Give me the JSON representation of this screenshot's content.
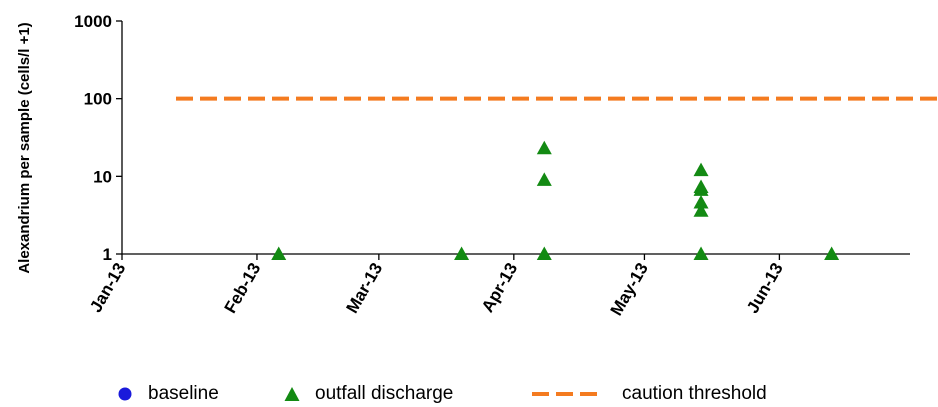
{
  "chart_data": {
    "type": "scatter",
    "ylabel": "Alexandrium per sample (cells/l +1)",
    "y_scale": "log",
    "ylim": [
      1,
      1000
    ],
    "y_ticks": [
      "1",
      "10",
      "100",
      "1000"
    ],
    "x_ticks": [
      "Jan-13",
      "Feb-13",
      "Mar-13",
      "Apr-13",
      "May-13",
      "Jun-13"
    ],
    "x_tick_dates": [
      "2013-01-01",
      "2013-02-01",
      "2013-03-01",
      "2013-04-01",
      "2013-05-01",
      "2013-06-01"
    ],
    "xlim": [
      "2013-01-01",
      "2013-07-01"
    ],
    "grid": false,
    "legend_position": "bottom",
    "series": [
      {
        "name": "baseline",
        "marker": "circle",
        "color": "#1a1adb",
        "points": []
      },
      {
        "name": "outfall discharge",
        "marker": "triangle",
        "color": "#138a13",
        "points": [
          {
            "x": "2013-02-06",
            "y": 1
          },
          {
            "x": "2013-03-20",
            "y": 1
          },
          {
            "x": "2013-04-08",
            "y": 1
          },
          {
            "x": "2013-04-08",
            "y": 9
          },
          {
            "x": "2013-04-08",
            "y": 23
          },
          {
            "x": "2013-05-14",
            "y": 1
          },
          {
            "x": "2013-05-14",
            "y": 3.6
          },
          {
            "x": "2013-05-14",
            "y": 4.6
          },
          {
            "x": "2013-05-14",
            "y": 6.7
          },
          {
            "x": "2013-05-14",
            "y": 7.3
          },
          {
            "x": "2013-05-14",
            "y": 12
          },
          {
            "x": "2013-06-13",
            "y": 1
          }
        ]
      }
    ],
    "threshold": {
      "name": "caution threshold",
      "value": 100,
      "color": "#f47b20",
      "style": "dashed"
    }
  }
}
